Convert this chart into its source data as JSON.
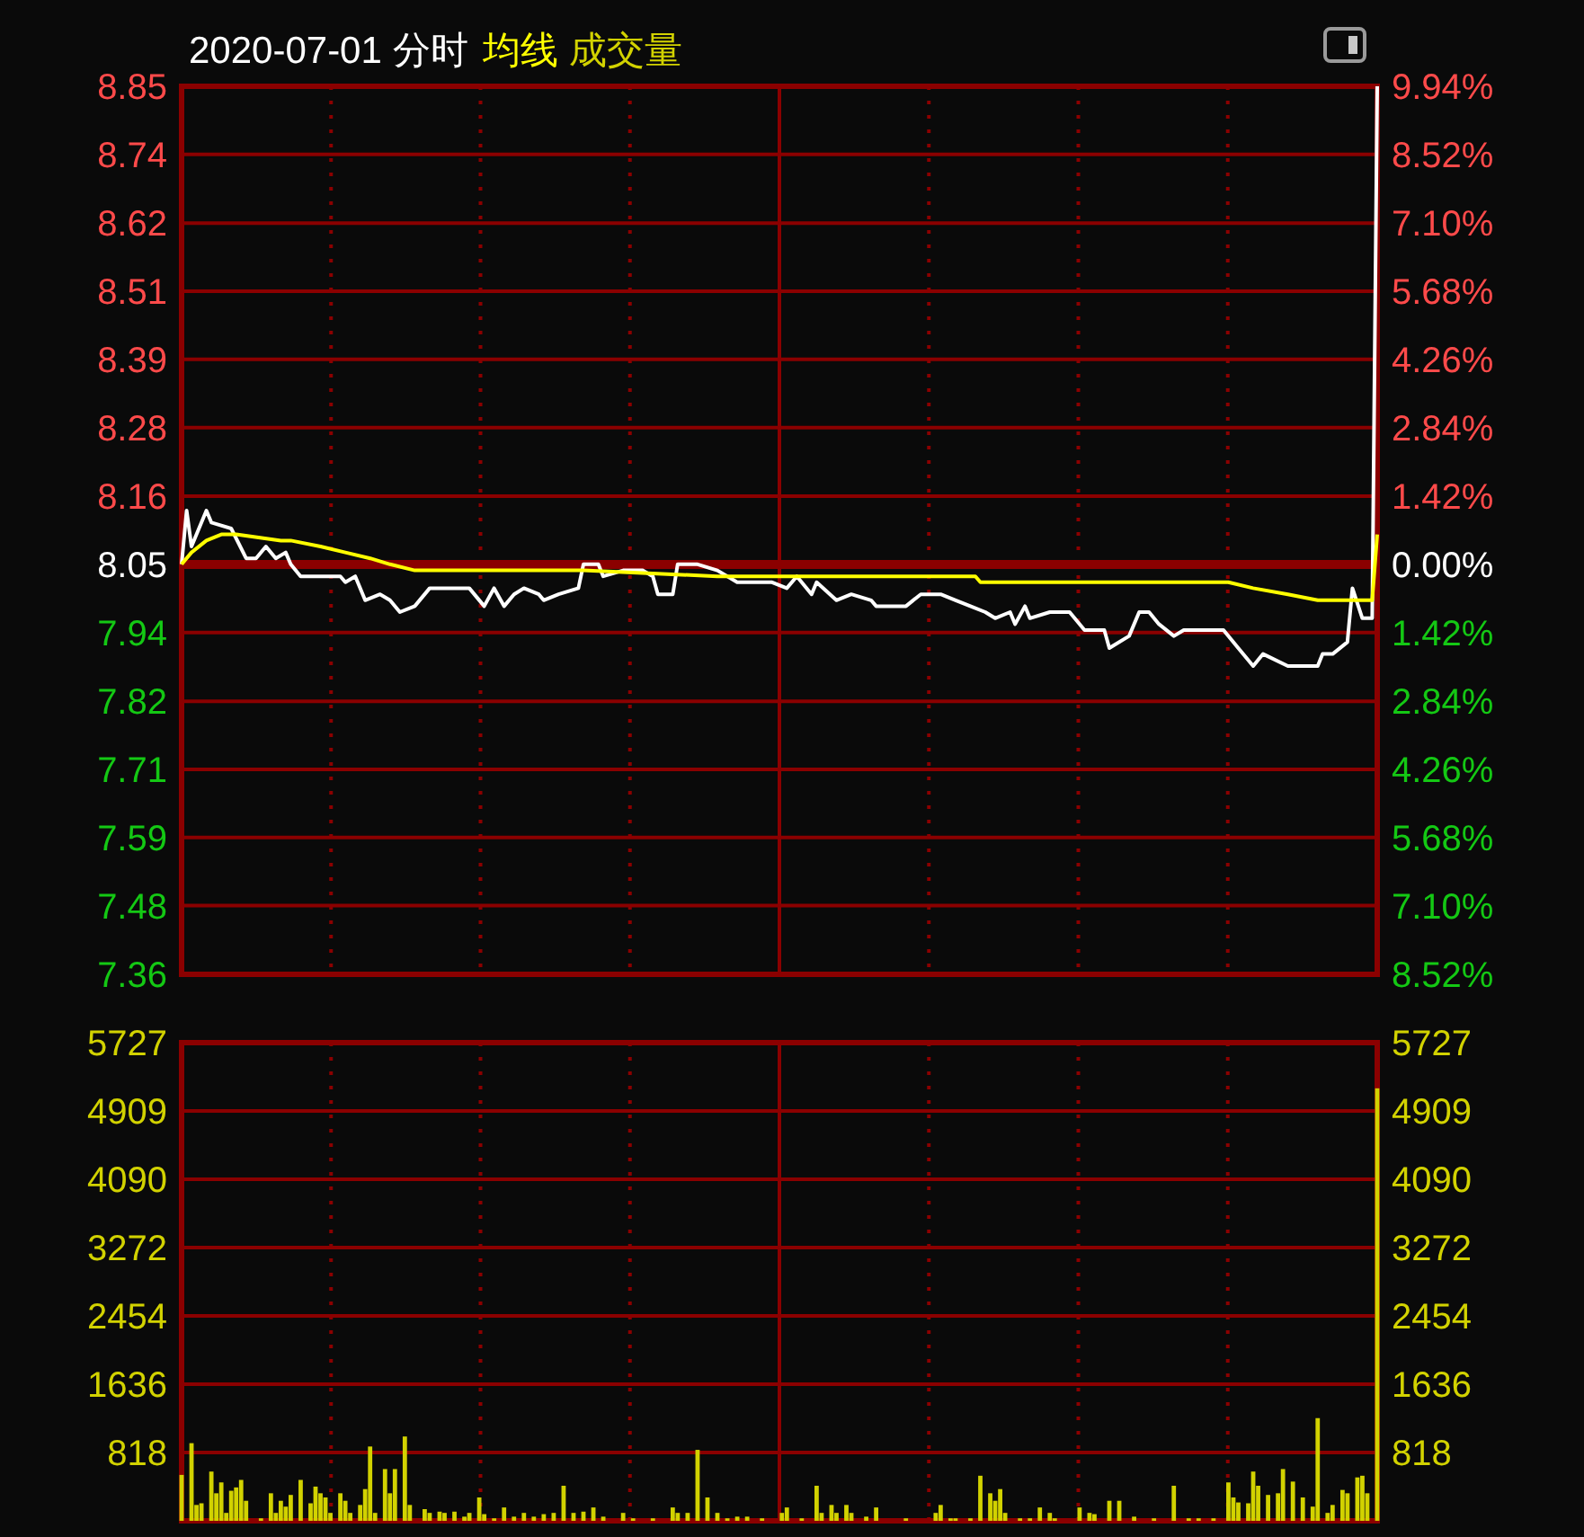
{
  "chart_data": [
    {
      "type": "line",
      "title": "2020-07-01 分时",
      "grid": true,
      "tick_labels": "y",
      "categories": [
        null,
        null,
        null,
        null,
        null,
        null,
        null,
        null,
        null,
        null,
        null,
        null,
        null,
        null,
        null,
        null,
        null,
        null,
        null,
        null,
        null,
        null,
        null,
        null,
        null,
        null,
        null,
        null,
        null,
        null,
        null,
        null,
        null,
        null,
        null,
        null,
        null,
        null,
        null,
        null,
        null,
        null,
        null,
        null,
        null,
        null,
        null,
        null,
        null,
        null,
        null,
        null,
        null,
        null,
        null,
        null,
        null,
        null,
        null,
        null,
        null,
        null,
        null,
        null,
        null,
        null,
        null,
        null,
        null,
        null,
        null,
        null,
        null,
        null,
        null,
        null,
        null,
        null,
        null,
        null,
        null,
        null,
        null,
        null,
        null,
        null,
        null,
        null,
        null,
        null,
        null,
        null,
        null,
        null,
        null,
        null,
        null,
        null,
        null,
        null,
        null,
        null,
        null,
        null,
        null,
        null,
        null,
        null,
        null,
        null,
        null,
        null,
        null,
        null,
        null,
        null,
        null,
        null,
        null,
        null,
        null,
        null,
        null,
        null,
        null,
        null,
        null,
        null,
        null,
        null,
        null,
        null,
        null,
        null,
        null,
        null,
        null,
        null,
        null,
        null,
        null,
        null,
        null,
        null,
        null,
        null,
        null,
        null,
        null,
        null,
        null,
        null,
        null,
        null,
        null,
        null,
        null,
        null,
        null,
        null,
        null,
        null,
        null,
        null,
        null,
        null,
        null,
        null,
        null,
        null,
        null,
        null,
        null,
        null,
        null,
        null,
        null,
        null,
        null,
        null,
        null,
        null,
        null,
        null,
        null,
        null,
        null,
        null,
        null,
        null,
        null,
        null,
        null,
        null,
        null,
        null,
        null,
        null,
        null,
        null,
        null,
        null,
        null,
        null,
        null,
        null,
        null,
        null,
        null,
        null,
        null,
        null,
        null,
        null,
        null,
        null,
        null,
        null,
        null,
        null,
        null,
        null,
        null,
        null,
        null,
        null,
        null,
        null,
        null,
        null,
        null,
        null,
        null,
        null,
        null,
        null,
        null,
        null,
        null,
        null,
        null,
        null
      ],
      "ylim": [
        7.364,
        8.85
      ],
      "yticks": [
        8.85,
        {
          "value": 8.736,
          "label": "8.74"
        },
        {
          "value": 8.621,
          "label": "8.62"
        },
        {
          "value": 8.507,
          "label": "8.51"
        },
        {
          "value": 8.393,
          "label": "8.39"
        },
        {
          "value": 8.279,
          "label": "8.28"
        },
        {
          "value": 8.164,
          "label": "8.16"
        },
        8.05,
        {
          "value": 7.936,
          "label": "7.94"
        },
        {
          "value": 7.821,
          "label": "7.82"
        },
        {
          "value": 7.707,
          "label": "7.71"
        },
        {
          "value": 7.593,
          "label": "7.59"
        },
        {
          "value": 7.479,
          "label": "7.48"
        },
        {
          "value": 7.364,
          "label": "7.36"
        }
      ],
      "y2lim": [
        -8.52,
        9.94
      ],
      "y2ticks": [
        {
          "value": 9.94,
          "label": "9.94%"
        },
        {
          "value": 8.52,
          "label": "8.52%"
        },
        {
          "value": 7.1,
          "label": "7.10%"
        },
        {
          "value": 5.68,
          "label": "5.68%"
        },
        {
          "value": 4.26,
          "label": "4.26%"
        },
        {
          "value": 2.84,
          "label": "2.84%"
        },
        {
          "value": 1.42,
          "label": "1.42%"
        },
        {
          "value": 0,
          "label": "0.00%"
        },
        {
          "value": -1.42,
          "label": "1.42%"
        },
        {
          "value": -2.84,
          "label": "2.84%"
        },
        {
          "value": -4.26,
          "label": "4.26%"
        },
        {
          "value": -5.68,
          "label": "5.68%"
        },
        {
          "value": -7.1,
          "label": "7.10%"
        },
        {
          "value": -8.52,
          "label": "8.52%"
        }
      ],
      "ref_lines": [
        {
          "axis": "y",
          "value": 8.05,
          "color": "#8b0000"
        }
      ],
      "series": [
        {
          "color": "#ffffff",
          "values": [
            8.05,
            8.14,
            8.08,
            null,
            null,
            8.14,
            8.12,
            null,
            null,
            null,
            8.11,
            null,
            null,
            8.06,
            null,
            8.06,
            null,
            8.08,
            null,
            8.06,
            null,
            8.07,
            8.05,
            null,
            8.03,
            null,
            null,
            null,
            null,
            null,
            8.03,
            null,
            8.03,
            8.02,
            null,
            8.03,
            null,
            7.99,
            null,
            null,
            8.0,
            null,
            7.99,
            null,
            7.97,
            null,
            null,
            7.98,
            null,
            null,
            8.01,
            null,
            null,
            null,
            null,
            null,
            null,
            null,
            8.01,
            null,
            null,
            7.98,
            null,
            8.01,
            null,
            7.98,
            null,
            8.0,
            null,
            8.01,
            null,
            null,
            8.0,
            7.99,
            null,
            null,
            8.0,
            null,
            null,
            null,
            8.01,
            8.05,
            null,
            null,
            8.05,
            8.03,
            null,
            null,
            null,
            8.04,
            null,
            null,
            null,
            8.04,
            null,
            8.03,
            8.0,
            null,
            null,
            8.0,
            8.05,
            null,
            null,
            null,
            8.05,
            null,
            null,
            null,
            8.04,
            null,
            null,
            null,
            8.02,
            null,
            null,
            null,
            null,
            null,
            null,
            8.02,
            null,
            null,
            8.01,
            null,
            8.03,
            null,
            null,
            8.0,
            8.02,
            null,
            null,
            null,
            7.99,
            null,
            null,
            8.0,
            null,
            null,
            null,
            7.99,
            7.98,
            null,
            null,
            null,
            null,
            null,
            7.98,
            null,
            null,
            8.0,
            null,
            null,
            null,
            8.0,
            null,
            null,
            7.99,
            null,
            null,
            7.98,
            null,
            null,
            7.97,
            null,
            7.96,
            null,
            null,
            7.97,
            7.95,
            null,
            7.98,
            7.96,
            null,
            null,
            null,
            7.97,
            null,
            null,
            null,
            7.97,
            null,
            null,
            7.94,
            null,
            null,
            null,
            7.94,
            7.91,
            null,
            null,
            null,
            7.93,
            null,
            7.97,
            null,
            7.97,
            null,
            7.95,
            null,
            null,
            7.93,
            null,
            7.94,
            null,
            null,
            7.94,
            null,
            null,
            null,
            null,
            7.94,
            null,
            null,
            7.91,
            null,
            null,
            7.88,
            null,
            7.9,
            null,
            null,
            null,
            null,
            7.88,
            null,
            null,
            7.88,
            null,
            null,
            7.88,
            7.9,
            null,
            7.9,
            null,
            null,
            7.92,
            8.01,
            null,
            7.96,
            null,
            7.96,
            8.85
          ]
        },
        {
          "name": "均线",
          "color": "#ffff00",
          "values": [
            8.05,
            null,
            8.07,
            null,
            null,
            8.09,
            null,
            null,
            8.1,
            null,
            null,
            8.1,
            null,
            null,
            null,
            null,
            null,
            null,
            null,
            null,
            8.09,
            null,
            8.09,
            null,
            null,
            null,
            null,
            null,
            8.08,
            null,
            null,
            null,
            null,
            8.07,
            null,
            null,
            null,
            null,
            8.06,
            null,
            null,
            null,
            8.05,
            null,
            null,
            null,
            null,
            8.04,
            null,
            null,
            null,
            null,
            null,
            null,
            null,
            null,
            null,
            null,
            null,
            null,
            null,
            null,
            null,
            null,
            null,
            null,
            null,
            null,
            null,
            null,
            null,
            null,
            null,
            null,
            null,
            null,
            null,
            8.04,
            null,
            null,
            null,
            8.04,
            null,
            null,
            null,
            null,
            null,
            null,
            null,
            null,
            null,
            null,
            null,
            null,
            null,
            null,
            null,
            null,
            null,
            null,
            null,
            null,
            null,
            null,
            null,
            null,
            null,
            null,
            8.03,
            null,
            null,
            null,
            null,
            null,
            null,
            null,
            null,
            null,
            null,
            null,
            null,
            null,
            null,
            null,
            null,
            null,
            null,
            null,
            null,
            null,
            null,
            null,
            null,
            null,
            null,
            null,
            null,
            null,
            null,
            null,
            null,
            null,
            null,
            null,
            null,
            null,
            null,
            null,
            null,
            null,
            null,
            null,
            null,
            null,
            null,
            null,
            null,
            null,
            null,
            null,
            8.03,
            8.02,
            null,
            null,
            null,
            null,
            null,
            null,
            null,
            null,
            null,
            null,
            null,
            null,
            null,
            null,
            null,
            null,
            null,
            null,
            null,
            null,
            null,
            8.02,
            null,
            null,
            null,
            null,
            null,
            null,
            null,
            null,
            null,
            null,
            null,
            null,
            null,
            null,
            null,
            null,
            null,
            null,
            null,
            null,
            null,
            null,
            null,
            null,
            null,
            null,
            null,
            8.02,
            null,
            null,
            null,
            null,
            8.01,
            null,
            null,
            null,
            null,
            null,
            null,
            8.0,
            null,
            null,
            null,
            null,
            null,
            7.99,
            null,
            null,
            null,
            null,
            null,
            null,
            null,
            null,
            null,
            null,
            7.99,
            8.1
          ]
        }
      ]
    },
    {
      "type": "bar",
      "grid": true,
      "tick_labels": "y",
      "categories": [
        null,
        null,
        null,
        null,
        null,
        null,
        null,
        null,
        null,
        null,
        null,
        null,
        null,
        null,
        null,
        null,
        null,
        null,
        null,
        null,
        null,
        null,
        null,
        null,
        null,
        null,
        null,
        null,
        null,
        null,
        null,
        null,
        null,
        null,
        null,
        null,
        null,
        null,
        null,
        null,
        null,
        null,
        null,
        null,
        null,
        null,
        null,
        null,
        null,
        null,
        null,
        null,
        null,
        null,
        null,
        null,
        null,
        null,
        null,
        null,
        null,
        null,
        null,
        null,
        null,
        null,
        null,
        null,
        null,
        null,
        null,
        null,
        null,
        null,
        null,
        null,
        null,
        null,
        null,
        null,
        null,
        null,
        null,
        null,
        null,
        null,
        null,
        null,
        null,
        null,
        null,
        null,
        null,
        null,
        null,
        null,
        null,
        null,
        null,
        null,
        null,
        null,
        null,
        null,
        null,
        null,
        null,
        null,
        null,
        null,
        null,
        null,
        null,
        null,
        null,
        null,
        null,
        null,
        null,
        null,
        null,
        null,
        null,
        null,
        null,
        null,
        null,
        null,
        null,
        null,
        null,
        null,
        null,
        null,
        null,
        null,
        null,
        null,
        null,
        null,
        null,
        null,
        null,
        null,
        null,
        null,
        null,
        null,
        null,
        null,
        null,
        null,
        null,
        null,
        null,
        null,
        null,
        null,
        null,
        null,
        null,
        null,
        null,
        null,
        null,
        null,
        null,
        null,
        null,
        null,
        null,
        null,
        null,
        null,
        null,
        null,
        null,
        null,
        null,
        null,
        null,
        null,
        null,
        null,
        null,
        null,
        null,
        null,
        null,
        null,
        null,
        null,
        null,
        null,
        null,
        null,
        null,
        null,
        null,
        null,
        null,
        null,
        null,
        null,
        null,
        null,
        null,
        null,
        null,
        null,
        null,
        null,
        null,
        null,
        null,
        null,
        null,
        null,
        null,
        null,
        null,
        null,
        null,
        null,
        null,
        null,
        null,
        null,
        null,
        null,
        null,
        null,
        null,
        null,
        null,
        null,
        null,
        null,
        null,
        null,
        null,
        null
      ],
      "ylim": [
        0,
        5727
      ],
      "yticks": [
        818,
        1636,
        2454,
        3272,
        4090,
        4909,
        5727
      ],
      "y2lim": [
        0,
        5727
      ],
      "y2ticks": [
        818,
        1636,
        2454,
        3272,
        4090,
        4909,
        5727
      ],
      "series": [
        {
          "name": "成交量",
          "color": "#d2d200",
          "values": [
            550,
            null,
            930,
            190,
            210,
            null,
            590,
            330,
            460,
            95,
            360,
            400,
            490,
            240,
            null,
            null,
            30,
            null,
            330,
            95,
            240,
            170,
            310,
            null,
            490,
            null,
            210,
            410,
            330,
            280,
            95,
            null,
            330,
            240,
            95,
            null,
            190,
            380,
            890,
            95,
            null,
            620,
            330,
            620,
            null,
            1010,
            190,
            null,
            null,
            140,
            95,
            null,
            110,
            95,
            null,
            110,
            null,
            50,
            95,
            null,
            280,
            80,
            null,
            30,
            null,
            160,
            null,
            50,
            null,
            95,
            null,
            50,
            null,
            80,
            null,
            95,
            null,
            420,
            null,
            95,
            null,
            110,
            null,
            160,
            null,
            50,
            null,
            null,
            null,
            95,
            null,
            30,
            null,
            null,
            null,
            30,
            null,
            null,
            null,
            160,
            95,
            null,
            95,
            null,
            850,
            null,
            280,
            null,
            95,
            null,
            30,
            null,
            50,
            null,
            50,
            null,
            null,
            30,
            null,
            null,
            null,
            95,
            160,
            null,
            null,
            30,
            null,
            null,
            420,
            95,
            null,
            190,
            95,
            null,
            190,
            95,
            null,
            null,
            50,
            null,
            160,
            null,
            null,
            null,
            null,
            null,
            30,
            null,
            null,
            null,
            null,
            null,
            95,
            190,
            null,
            30,
            30,
            null,
            null,
            30,
            null,
            540,
            null,
            330,
            240,
            380,
            95,
            null,
            null,
            30,
            null,
            30,
            null,
            160,
            null,
            95,
            30,
            null,
            null,
            null,
            null,
            160,
            null,
            95,
            80,
            null,
            null,
            240,
            null,
            240,
            null,
            null,
            50,
            null,
            null,
            null,
            30,
            null,
            null,
            null,
            420,
            null,
            null,
            30,
            null,
            30,
            null,
            null,
            30,
            null,
            null,
            460,
            280,
            220,
            null,
            210,
            590,
            420,
            null,
            310,
            null,
            330,
            620,
            null,
            470,
            null,
            280,
            null,
            170,
            1230,
            null,
            95,
            190,
            null,
            370,
            330,
            null,
            520,
            540,
            330,
            null,
            5180
          ]
        }
      ]
    }
  ]
}
